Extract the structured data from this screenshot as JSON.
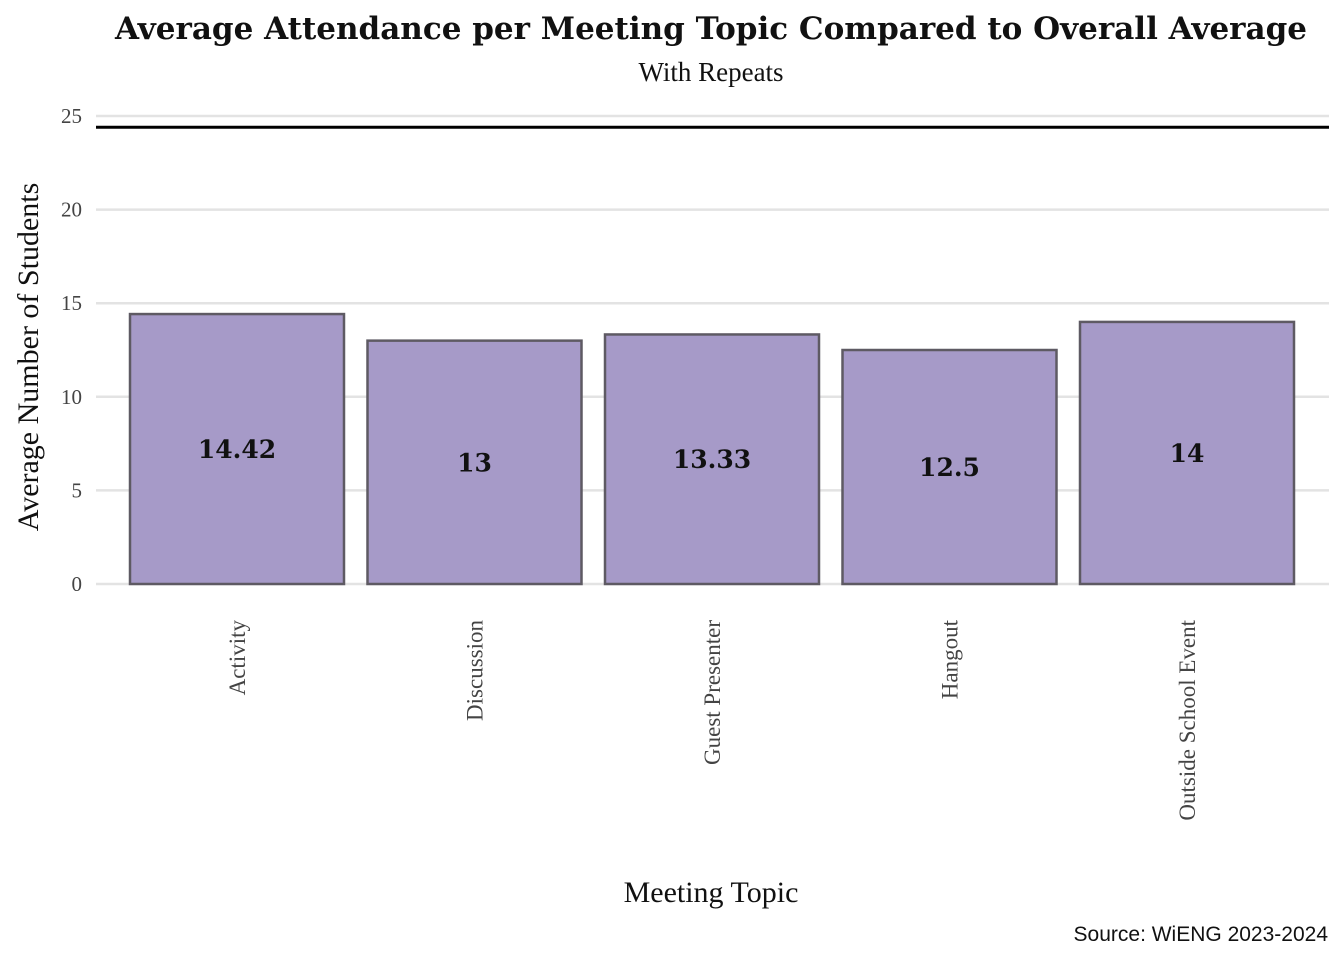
{
  "chart_data": {
    "type": "bar",
    "title": "Average Attendance per Meeting Topic Compared to Overall Average",
    "subtitle": "With Repeats",
    "xlabel": "Meeting Topic",
    "ylabel": "Average Number of Students",
    "caption": "Source: WiENG 2023-2024",
    "categories": [
      "Activity",
      "Discussion",
      "Guest Presenter",
      "Hangout",
      "Outside School Event"
    ],
    "values": [
      14.42,
      13,
      13.33,
      12.5,
      14
    ],
    "value_labels": [
      "14.42",
      "13",
      "13.33",
      "12.5",
      "14"
    ],
    "ylim": [
      0,
      25
    ],
    "yticks": [
      0,
      5,
      10,
      15,
      20,
      25
    ],
    "reference_line": 24.4,
    "grid": true,
    "legend": "none",
    "colors": {
      "bar_fill": "#a69ac8",
      "bar_stroke": "#5e5a63",
      "reference_line": "#000000"
    }
  }
}
